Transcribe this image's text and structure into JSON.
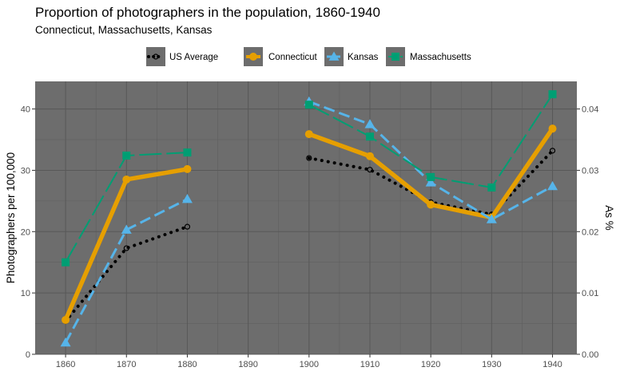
{
  "chart_data": {
    "type": "line",
    "title": "Proportion of photographers in the population, 1860-1940",
    "subtitle": "Connecticut, Massachusetts, Kansas",
    "ylabel": "Photographers per 100,000",
    "y2label": "As %",
    "xlim": [
      1855,
      1944
    ],
    "ylim": [
      0,
      44.5
    ],
    "x_ticks": [
      "1860",
      "1870",
      "1880",
      "1890",
      "1900",
      "1910",
      "1920",
      "1930",
      "1940"
    ],
    "y_ticks": [
      "0",
      "10",
      "20",
      "30",
      "40"
    ],
    "y2_ticks": [
      "0.00",
      "0.01",
      "0.02",
      "0.03",
      "0.04"
    ],
    "legend_position": "top",
    "panel_color": "#6d6d6d",
    "series": [
      {
        "name": "US Average",
        "color": "#000000",
        "line": "dotted",
        "marker": "open-circle",
        "points": [
          {
            "x": 1860,
            "y": 5.4
          },
          {
            "x": 1870,
            "y": 17.3
          },
          {
            "x": 1880,
            "y": 20.8
          },
          {
            "x": 1900,
            "y": 32.0
          },
          {
            "x": 1910,
            "y": 30.1
          },
          {
            "x": 1920,
            "y": 24.8
          },
          {
            "x": 1930,
            "y": 22.8
          },
          {
            "x": 1940,
            "y": 33.2
          }
        ]
      },
      {
        "name": "Connecticut",
        "color": "#E69F00",
        "line": "solid",
        "marker": "circle",
        "points": [
          {
            "x": 1860,
            "y": 5.6
          },
          {
            "x": 1870,
            "y": 28.5
          },
          {
            "x": 1880,
            "y": 30.2
          },
          {
            "x": 1900,
            "y": 35.9
          },
          {
            "x": 1910,
            "y": 32.3
          },
          {
            "x": 1920,
            "y": 24.4
          },
          {
            "x": 1930,
            "y": 22.3
          },
          {
            "x": 1940,
            "y": 36.8
          }
        ]
      },
      {
        "name": "Kansas",
        "color": "#56B4E9",
        "line": "dashed",
        "marker": "triangle",
        "points": [
          {
            "x": 1860,
            "y": 1.9
          },
          {
            "x": 1870,
            "y": 20.3
          },
          {
            "x": 1880,
            "y": 25.3
          },
          {
            "x": 1900,
            "y": 41.2
          },
          {
            "x": 1910,
            "y": 37.5
          },
          {
            "x": 1920,
            "y": 28.0
          },
          {
            "x": 1930,
            "y": 22.0
          },
          {
            "x": 1940,
            "y": 27.4
          }
        ]
      },
      {
        "name": "Massachusetts",
        "color": "#009E73",
        "line": "longdash",
        "marker": "square",
        "points": [
          {
            "x": 1860,
            "y": 15.0
          },
          {
            "x": 1870,
            "y": 32.4
          },
          {
            "x": 1880,
            "y": 32.9
          },
          {
            "x": 1900,
            "y": 40.7
          },
          {
            "x": 1910,
            "y": 35.5
          },
          {
            "x": 1920,
            "y": 28.9
          },
          {
            "x": 1930,
            "y": 27.2
          },
          {
            "x": 1940,
            "y": 42.4
          }
        ]
      }
    ]
  }
}
